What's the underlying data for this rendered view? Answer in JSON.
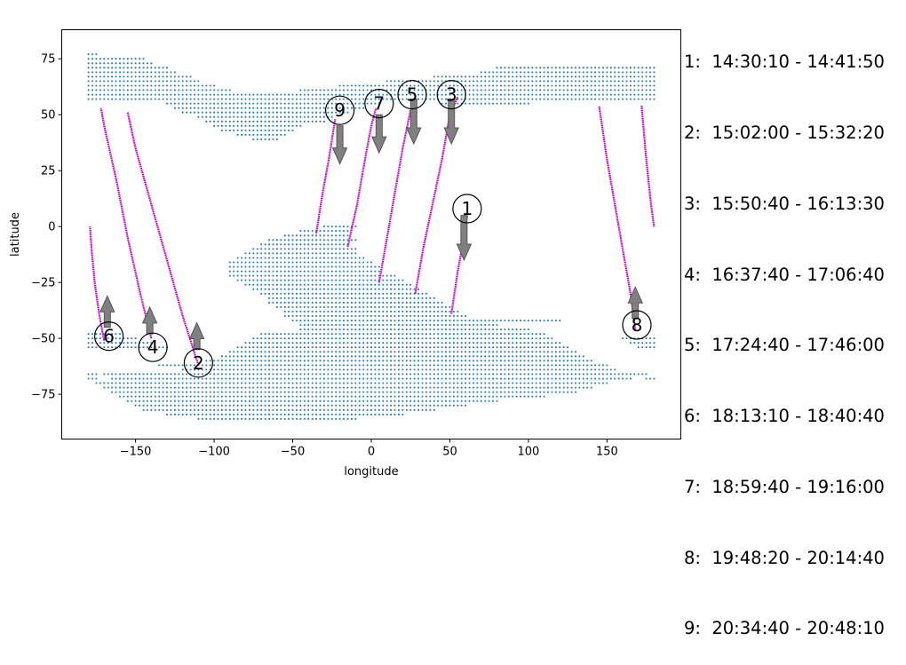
{
  "chart_data": {
    "type": "scatter",
    "xlabel": "longitude",
    "ylabel": "latitude",
    "xlim": [
      -197,
      197
    ],
    "ylim": [
      -95,
      88
    ],
    "xticks": [
      -150,
      -100,
      -50,
      0,
      50,
      100,
      150
    ],
    "yticks": [
      -75,
      -50,
      -25,
      0,
      25,
      50,
      75
    ],
    "grid": false,
    "land_color": "#1f77b4",
    "track_color": "#c000c0",
    "arrow_color": "#808080",
    "land_regions": [
      {
        "name": "north-land",
        "rows": [
          [
            77,
            [
              [
                -180,
                -175
              ]
            ]
          ],
          [
            75,
            [
              [
                -180,
                -145
              ]
            ]
          ],
          [
            73,
            [
              [
                -180,
                -140
              ]
            ]
          ],
          [
            71,
            [
              [
                -180,
                -130
              ],
              [
                80,
                180
              ]
            ]
          ],
          [
            69,
            [
              [
                -180,
                -125
              ],
              [
                70,
                180
              ]
            ]
          ],
          [
            67,
            [
              [
                -180,
                -115
              ],
              [
                40,
                180
              ]
            ]
          ],
          [
            65,
            [
              [
                -180,
                -110
              ],
              [
                10,
                180
              ]
            ]
          ],
          [
            63,
            [
              [
                -180,
                -100
              ],
              [
                -20,
                180
              ]
            ]
          ],
          [
            61,
            [
              [
                -180,
                -90
              ],
              [
                -45,
                180
              ]
            ]
          ],
          [
            59,
            [
              [
                -180,
                180
              ]
            ]
          ],
          [
            57,
            [
              [
                -180,
                180
              ]
            ]
          ],
          [
            55,
            [
              [
                -130,
                5
              ],
              [
                45,
                100
              ]
            ]
          ],
          [
            53,
            [
              [
                -125,
                -5
              ]
            ]
          ],
          [
            51,
            [
              [
                -120,
                -15
              ]
            ]
          ],
          [
            49,
            [
              [
                -110,
                -25
              ]
            ]
          ],
          [
            47,
            [
              [
                -105,
                -30
              ]
            ]
          ],
          [
            45,
            [
              [
                -100,
                -45
              ]
            ]
          ],
          [
            43,
            [
              [
                -95,
                -50
              ]
            ]
          ],
          [
            41,
            [
              [
                -85,
                -55
              ]
            ]
          ],
          [
            39,
            [
              [
                -75,
                -60
              ]
            ]
          ]
        ]
      },
      {
        "name": "south-land",
        "rows": [
          [
            0,
            [
              [
                -30,
                -10
              ]
            ]
          ],
          [
            -2,
            [
              [
                -45,
                -15
              ]
            ]
          ],
          [
            -4,
            [
              [
                -55,
                -15
              ]
            ]
          ],
          [
            -6,
            [
              [
                -65,
                -10
              ]
            ]
          ],
          [
            -8,
            [
              [
                -70,
                -15
              ]
            ]
          ],
          [
            -10,
            [
              [
                -75,
                -10
              ]
            ]
          ],
          [
            -12,
            [
              [
                -80,
                -10
              ]
            ]
          ],
          [
            -14,
            [
              [
                -85,
                -5
              ]
            ]
          ],
          [
            -16,
            [
              [
                -90,
                0
              ]
            ]
          ],
          [
            -18,
            [
              [
                -90,
                5
              ]
            ]
          ],
          [
            -20,
            [
              [
                -90,
                5
              ]
            ]
          ],
          [
            -22,
            [
              [
                -90,
                15
              ]
            ]
          ],
          [
            -24,
            [
              [
                -85,
                20
              ]
            ]
          ],
          [
            -26,
            [
              [
                -80,
                25
              ]
            ]
          ],
          [
            -28,
            [
              [
                -75,
                30
              ]
            ]
          ],
          [
            -30,
            [
              [
                -70,
                35
              ]
            ]
          ],
          [
            -32,
            [
              [
                -65,
                40
              ]
            ]
          ],
          [
            -34,
            [
              [
                -65,
                45
              ]
            ]
          ],
          [
            -36,
            [
              [
                -60,
                50
              ]
            ]
          ],
          [
            -38,
            [
              [
                -55,
                55
              ]
            ]
          ],
          [
            -40,
            [
              [
                -55,
                60
              ]
            ]
          ],
          [
            -42,
            [
              [
                -50,
                120
              ]
            ]
          ],
          [
            -44,
            [
              [
                -45,
                80
              ]
            ]
          ],
          [
            -46,
            [
              [
                -45,
                100
              ]
            ]
          ],
          [
            -48,
            [
              [
                -70,
                110
              ],
              [
                -180,
                -160
              ]
            ]
          ],
          [
            -50,
            [
              [
                -75,
                115
              ],
              [
                -180,
                -150
              ],
              [
                160,
                180
              ]
            ]
          ],
          [
            -52,
            [
              [
                -80,
                120
              ],
              [
                -180,
                -140
              ],
              [
                165,
                180
              ]
            ]
          ],
          [
            -54,
            [
              [
                -85,
                125
              ],
              [
                -180,
                -130
              ],
              [
                170,
                180
              ]
            ]
          ],
          [
            -56,
            [
              [
                -90,
                130
              ]
            ]
          ],
          [
            -58,
            [
              [
                -95,
                135
              ]
            ]
          ],
          [
            -60,
            [
              [
                -105,
                140
              ]
            ]
          ],
          [
            -62,
            [
              [
                -135,
                145
              ],
              [
                -110,
                150
              ]
            ]
          ],
          [
            -64,
            [
              [
                -120,
                155
              ]
            ]
          ],
          [
            -66,
            [
              [
                -180,
                -175
              ],
              [
                -170,
                175
              ]
            ]
          ],
          [
            -68,
            [
              [
                -180,
                -175
              ],
              [
                -165,
                165
              ],
              [
                175,
                180
              ]
            ]
          ],
          [
            -70,
            [
              [
                -175,
                150
              ]
            ]
          ],
          [
            -72,
            [
              [
                -170,
                140
              ]
            ]
          ],
          [
            -74,
            [
              [
                -165,
                130
              ]
            ]
          ],
          [
            -76,
            [
              [
                -160,
                110
              ]
            ]
          ],
          [
            -78,
            [
              [
                -155,
                80
              ]
            ]
          ],
          [
            -80,
            [
              [
                -150,
                60
              ]
            ]
          ],
          [
            -82,
            [
              [
                -145,
                40
              ]
            ]
          ],
          [
            -84,
            [
              [
                -130,
                20
              ]
            ]
          ],
          [
            -86,
            [
              [
                -110,
                -10
              ]
            ]
          ]
        ]
      }
    ],
    "tracks": [
      {
        "id": "1",
        "points": [
          [
            51,
            -39
          ],
          [
            55,
            -20
          ],
          [
            59,
            -5
          ],
          [
            61,
            5
          ]
        ]
      },
      {
        "id": "2",
        "points": [
          [
            -110,
            -62
          ],
          [
            -120,
            -40
          ],
          [
            -130,
            -15
          ],
          [
            -140,
            10
          ],
          [
            -150,
            35
          ],
          [
            -155,
            51
          ]
        ]
      },
      {
        "id": "3",
        "points": [
          [
            28,
            -30
          ],
          [
            33,
            -10
          ],
          [
            39,
            10
          ],
          [
            45,
            30
          ],
          [
            50,
            50
          ],
          [
            55,
            58
          ]
        ]
      },
      {
        "id": "4",
        "points": [
          [
            -140,
            -50
          ],
          [
            -147,
            -30
          ],
          [
            -155,
            -5
          ],
          [
            -162,
            20
          ],
          [
            -170,
            45
          ],
          [
            -172,
            53
          ]
        ]
      },
      {
        "id": "5",
        "points": [
          [
            5,
            -25
          ],
          [
            10,
            -5
          ],
          [
            15,
            15
          ],
          [
            20,
            35
          ],
          [
            25,
            52
          ],
          [
            28,
            58
          ]
        ]
      },
      {
        "id": "6",
        "points": [
          [
            -170,
            -51
          ],
          [
            -173,
            -40
          ],
          [
            -176,
            -25
          ],
          [
            -178,
            -10
          ],
          [
            -179,
            0
          ]
        ]
      },
      {
        "id": "7",
        "points": [
          [
            -15,
            -9
          ],
          [
            -9,
            10
          ],
          [
            -4,
            30
          ],
          [
            0,
            45
          ],
          [
            3,
            53
          ]
        ]
      },
      {
        "id": "8",
        "points": [
          [
            168,
            -46
          ],
          [
            165,
            -30
          ],
          [
            160,
            -10
          ],
          [
            155,
            10
          ],
          [
            150,
            30
          ],
          [
            145,
            54
          ]
        ]
      },
      {
        "id": "8b",
        "points": [
          [
            172,
            54
          ],
          [
            175,
            30
          ],
          [
            178,
            10
          ],
          [
            180,
            0
          ]
        ]
      },
      {
        "id": "9",
        "points": [
          [
            -35,
            -3
          ],
          [
            -31,
            15
          ],
          [
            -27,
            30
          ],
          [
            -23,
            48
          ]
        ]
      }
    ],
    "arrows": [
      {
        "id": "1",
        "x": 59,
        "from": 5,
        "to": -15
      },
      {
        "id": "2",
        "x": -111,
        "from": -55,
        "to": -43
      },
      {
        "id": "3",
        "x": 51,
        "from": 57,
        "to": 37
      },
      {
        "id": "4",
        "x": -141,
        "from": -48,
        "to": -36
      },
      {
        "id": "5",
        "x": 27,
        "from": 57,
        "to": 37
      },
      {
        "id": "6",
        "x": -168,
        "from": -45,
        "to": -31
      },
      {
        "id": "7",
        "x": 5,
        "from": 50,
        "to": 33
      },
      {
        "id": "8",
        "x": 168,
        "from": -41,
        "to": -27
      },
      {
        "id": "9",
        "x": -20,
        "from": 45,
        "to": 28
      }
    ],
    "markers": [
      {
        "label": "1",
        "x": 61,
        "y": 8
      },
      {
        "label": "2",
        "x": -110,
        "y": -61
      },
      {
        "label": "3",
        "x": 51,
        "y": 59
      },
      {
        "label": "4",
        "x": -139,
        "y": -54
      },
      {
        "label": "5",
        "x": 26,
        "y": 59
      },
      {
        "label": "6",
        "x": -167,
        "y": -49
      },
      {
        "label": "7",
        "x": 5,
        "y": 55
      },
      {
        "label": "8",
        "x": 169,
        "y": -44
      },
      {
        "label": "9",
        "x": -20,
        "y": 52
      }
    ],
    "legend": {
      "placement": "right",
      "entries": [
        "1:  14:30:10 - 14:41:50",
        "2:  15:02:00 - 15:32:20",
        "3:  15:50:40 - 16:13:30",
        "4:  16:37:40 - 17:06:40",
        "5:  17:24:40 - 17:46:00",
        "6:  18:13:10 - 18:40:40",
        "7:  18:59:40 - 19:16:00",
        "8:  19:48:20 - 20:14:40",
        "9:  20:34:40 - 20:48:10"
      ]
    }
  }
}
